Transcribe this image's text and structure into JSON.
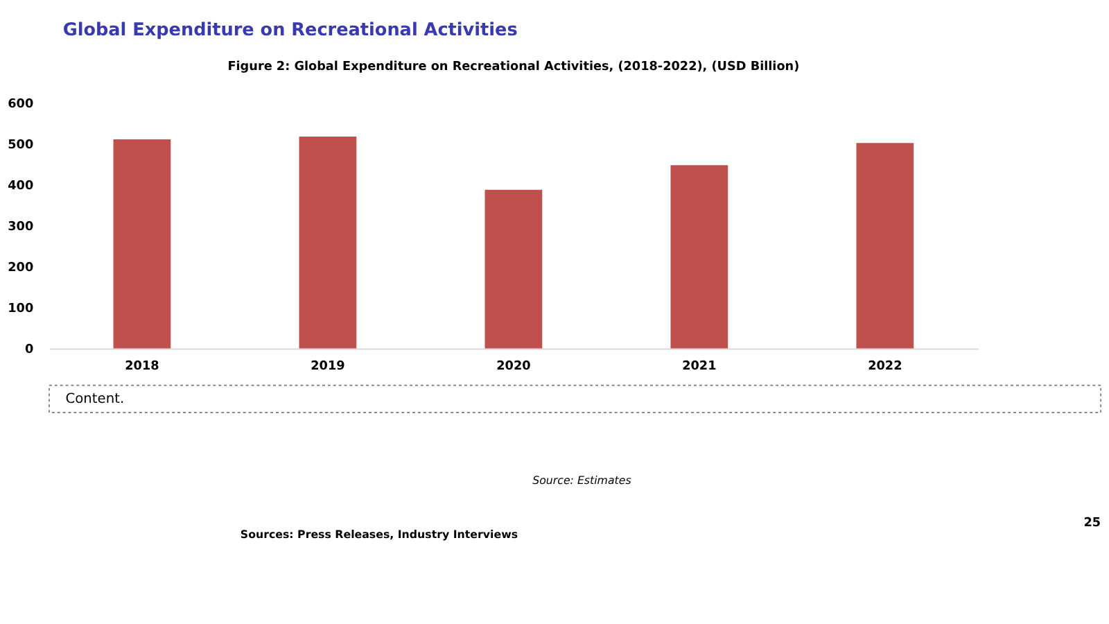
{
  "chart_data": {
    "type": "bar",
    "title": "Global Expenditure on Recreational Activities",
    "subtitle": "Figure 2: Global Expenditure on Recreational Activities, (2018-2022), (USD Billion)",
    "categories": [
      "2018",
      "2019",
      "2020",
      "2021",
      "2022"
    ],
    "values": [
      510,
      517,
      387,
      447,
      501
    ],
    "color": "#c0504d",
    "ylim": [
      0,
      600
    ],
    "yticks": [
      0,
      100,
      200,
      300,
      400,
      500,
      600
    ],
    "grid": false,
    "annotations": [
      "Content.",
      "Source: Estimates",
      "Sources: Press Releases, Industry Interviews",
      "25"
    ]
  }
}
